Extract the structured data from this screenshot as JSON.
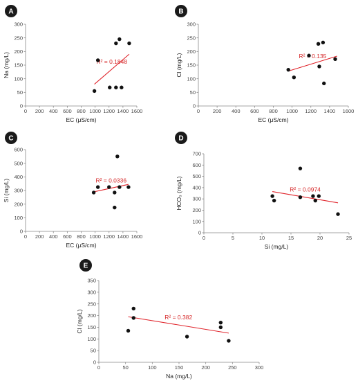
{
  "chart_data": [
    {
      "panel": "A",
      "type": "scatter",
      "xlabel": "EC (μS/cm)",
      "ylabel": "Na (mg/L)",
      "xlim": [
        0,
        1600
      ],
      "ylim": [
        0,
        300
      ],
      "xticks": [
        0,
        200,
        400,
        600,
        800,
        1000,
        1200,
        1400,
        1600
      ],
      "yticks": [
        0,
        50,
        100,
        150,
        200,
        250,
        300
      ],
      "points": [
        [
          990,
          55
        ],
        [
          1040,
          168
        ],
        [
          1210,
          68
        ],
        [
          1300,
          230
        ],
        [
          1300,
          68
        ],
        [
          1350,
          245
        ],
        [
          1380,
          68
        ],
        [
          1490,
          230
        ]
      ],
      "trendline": [
        [
          990,
          80
        ],
        [
          1490,
          190
        ]
      ],
      "r2_label": "R² = 0.1848"
    },
    {
      "panel": "B",
      "type": "scatter",
      "xlabel": "EC (μS/cm)",
      "ylabel": "Cl (mg/L)",
      "xlim": [
        0,
        1600
      ],
      "ylim": [
        0,
        300
      ],
      "xticks": [
        0,
        200,
        400,
        600,
        800,
        1000,
        1200,
        1400,
        1600
      ],
      "yticks": [
        0,
        50,
        100,
        150,
        200,
        250,
        300
      ],
      "points": [
        [
          960,
          133
        ],
        [
          1020,
          105
        ],
        [
          1180,
          185
        ],
        [
          1280,
          228
        ],
        [
          1290,
          145
        ],
        [
          1330,
          233
        ],
        [
          1340,
          83
        ],
        [
          1460,
          172
        ]
      ],
      "trendline": [
        [
          960,
          128
        ],
        [
          1480,
          183
        ]
      ],
      "r2_label": "R² = 0.135"
    },
    {
      "panel": "C",
      "type": "scatter",
      "xlabel": "EC (μS/cm)",
      "ylabel": "Si (mg/L)",
      "xlim": [
        0,
        1600
      ],
      "ylim": [
        0,
        600
      ],
      "xticks": [
        0,
        200,
        400,
        600,
        800,
        1000,
        1200,
        1400,
        1600
      ],
      "yticks": [
        0,
        100,
        200,
        300,
        400,
        500,
        600
      ],
      "points": [
        [
          980,
          285
        ],
        [
          1040,
          325
        ],
        [
          1200,
          325
        ],
        [
          1280,
          285
        ],
        [
          1280,
          175
        ],
        [
          1320,
          550
        ],
        [
          1350,
          325
        ],
        [
          1480,
          325
        ]
      ],
      "trendline": [
        [
          980,
          290
        ],
        [
          1480,
          345
        ]
      ],
      "r2_label": "R² = 0.0336"
    },
    {
      "panel": "D",
      "type": "scatter",
      "xlabel": "Si (mg/L)",
      "ylabel": "HCO₃ (mg/L)",
      "xlim": [
        0,
        25
      ],
      "ylim": [
        0,
        700
      ],
      "xticks": [
        0,
        5,
        10,
        15,
        20,
        25
      ],
      "yticks": [
        0,
        100,
        200,
        300,
        400,
        500,
        600,
        700
      ],
      "points": [
        [
          11.8,
          325
        ],
        [
          12.1,
          285
        ],
        [
          16.6,
          570
        ],
        [
          16.6,
          315
        ],
        [
          18.8,
          325
        ],
        [
          19.2,
          285
        ],
        [
          19.8,
          325
        ],
        [
          23.1,
          165
        ]
      ],
      "trendline": [
        [
          11.8,
          365
        ],
        [
          23.1,
          265
        ]
      ],
      "r2_label": "R² = 0.0974"
    },
    {
      "panel": "E",
      "type": "scatter",
      "xlabel": "Na (mg/L)",
      "ylabel": "Cl (mg/L)",
      "xlim": [
        0,
        300
      ],
      "ylim": [
        0,
        350
      ],
      "xticks": [
        0,
        50,
        100,
        150,
        200,
        250,
        300
      ],
      "yticks": [
        0,
        50,
        100,
        150,
        200,
        250,
        300,
        350
      ],
      "points": [
        [
          55,
          135
        ],
        [
          65,
          230
        ],
        [
          65,
          190
        ],
        [
          165,
          110
        ],
        [
          228,
          170
        ],
        [
          228,
          150
        ],
        [
          243,
          92
        ]
      ],
      "trendline": [
        [
          55,
          195
        ],
        [
          243,
          125
        ]
      ],
      "r2_label": "R² = 0.382"
    }
  ]
}
